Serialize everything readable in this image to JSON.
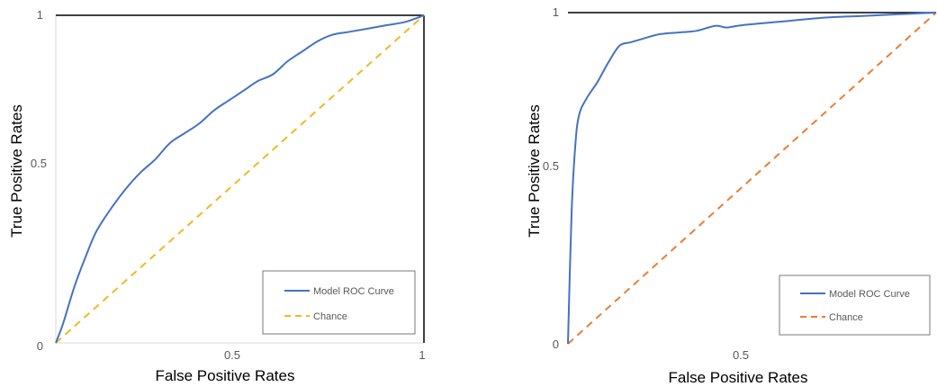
{
  "chart_data": [
    {
      "type": "line",
      "title": "",
      "xlabel": "False Positive Rates",
      "ylabel": "True Positive Rates",
      "xlim": [
        0,
        1
      ],
      "ylim": [
        0,
        1
      ],
      "x_ticks": [
        "0.5",
        "1"
      ],
      "y_ticks": [
        "0",
        "0.5",
        "1"
      ],
      "grid": false,
      "legend_position": "bottom-right",
      "series": [
        {
          "name": "Model ROC Curve",
          "color": "#4472C4",
          "dash": "solid",
          "x": [
            0.0,
            0.02,
            0.05,
            0.08,
            0.11,
            0.15,
            0.19,
            0.23,
            0.27,
            0.31,
            0.35,
            0.39,
            0.43,
            0.47,
            0.51,
            0.55,
            0.59,
            0.63,
            0.67,
            0.71,
            0.75,
            0.8,
            0.85,
            0.9,
            0.95,
            1.0
          ],
          "y": [
            0.0,
            0.06,
            0.17,
            0.26,
            0.34,
            0.41,
            0.47,
            0.52,
            0.56,
            0.61,
            0.64,
            0.67,
            0.71,
            0.74,
            0.77,
            0.8,
            0.82,
            0.86,
            0.89,
            0.92,
            0.94,
            0.95,
            0.96,
            0.97,
            0.98,
            1.0
          ]
        },
        {
          "name": "Chance",
          "color": "#F2B822",
          "dash": "dashed",
          "x": [
            0,
            1
          ],
          "y": [
            0,
            1
          ]
        }
      ]
    },
    {
      "type": "line",
      "title": "",
      "xlabel": "False Positive Rates",
      "ylabel": "True Positive Rates",
      "xlim": [
        0,
        1
      ],
      "ylim": [
        0,
        1
      ],
      "x_ticks": [
        "0.5"
      ],
      "y_ticks": [
        "0",
        "0.5",
        "1"
      ],
      "grid": false,
      "legend_position": "bottom-right",
      "series": [
        {
          "name": "Model ROC Curve",
          "color": "#4472C4",
          "dash": "solid",
          "x": [
            0.0,
            0.01,
            0.02,
            0.03,
            0.05,
            0.08,
            0.11,
            0.14,
            0.17,
            0.2,
            0.25,
            0.3,
            0.35,
            0.4,
            0.43,
            0.46,
            0.5,
            0.6,
            0.7,
            0.8,
            0.9,
            1.0
          ],
          "y": [
            0.0,
            0.4,
            0.6,
            0.69,
            0.74,
            0.79,
            0.85,
            0.9,
            0.91,
            0.92,
            0.935,
            0.94,
            0.945,
            0.96,
            0.955,
            0.96,
            0.965,
            0.975,
            0.985,
            0.99,
            0.995,
            1.0
          ]
        },
        {
          "name": "Chance",
          "color": "#ED7D31",
          "dash": "dashed",
          "x": [
            0,
            1
          ],
          "y": [
            0,
            1
          ]
        }
      ]
    }
  ]
}
